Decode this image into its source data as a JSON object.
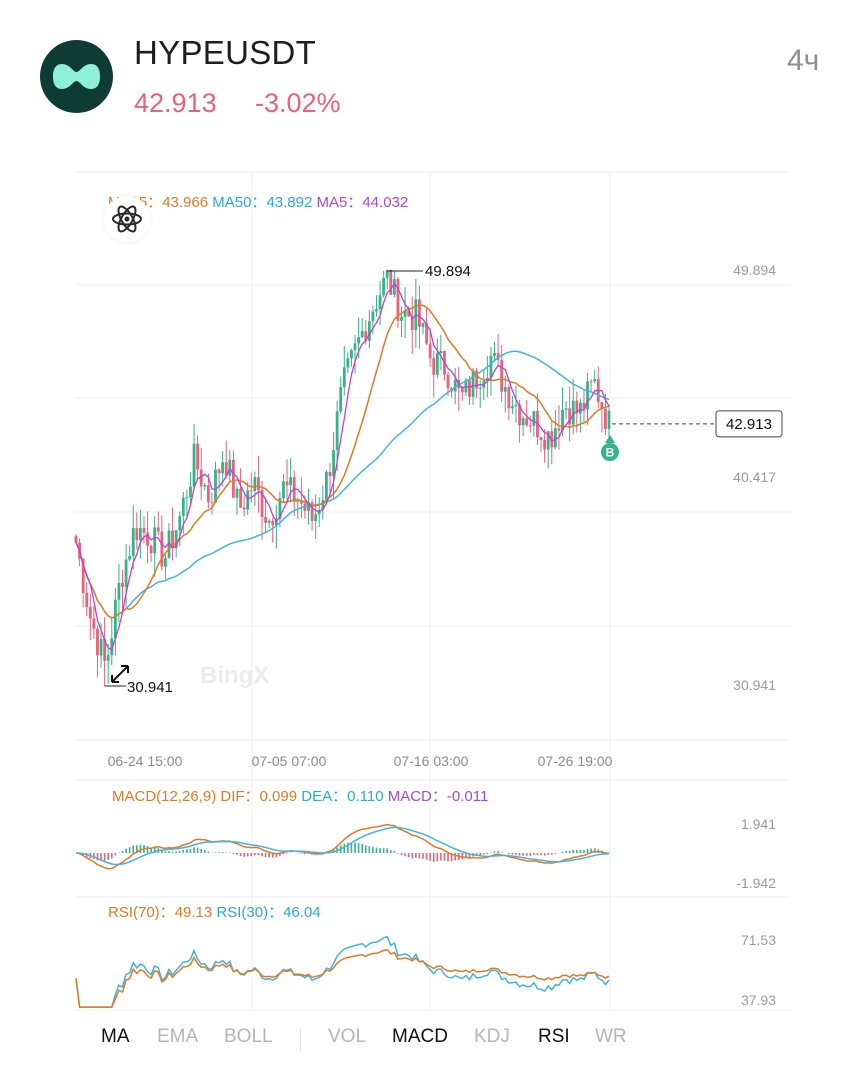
{
  "header": {
    "symbol": "HYPEUSDT",
    "price": "42.913",
    "change": "-3.02%",
    "interval": "4ч",
    "logo_icon": "hyperliquid-logo-icon",
    "colors": {
      "down": "#e8637a",
      "logo_bg": "#0e3b32",
      "logo_fg": "#8ef0d8"
    }
  },
  "main_chart": {
    "ma_legend": {
      "ma15_label": "MA15：",
      "ma15_value": "43.966",
      "ma50_label": "MA50：",
      "ma50_value": "43.892",
      "ma5_label": "MA5：",
      "ma5_value": "44.032"
    },
    "y_axis_labels": [
      "49.894",
      "40.417",
      "30.941"
    ],
    "high_label": "49.894",
    "low_label": "30.941",
    "last_price_tag": "42.913",
    "buy_marker": "B",
    "watermark": "BingX",
    "x_axis_labels": [
      "06-24 15:00",
      "07-05 07:00",
      "07-16 03:00",
      "07-26 19:00"
    ],
    "colors": {
      "up": "#35b389",
      "down": "#e8637a",
      "ma5": "#c43fd0",
      "ma15": "#e07a26",
      "ma50": "#41b4e6"
    }
  },
  "macd": {
    "label": "MACD(12,26,9)",
    "dif_label": "DIF：",
    "dif_value": "0.099",
    "dea_label": "DEA：",
    "dea_value": "0.110",
    "macd_label": "MACD：",
    "macd_value": "-0.011",
    "y_axis_labels": [
      "1.941",
      "-1.942"
    ]
  },
  "rsi": {
    "rsi70_label": "RSI(70)：",
    "rsi70_value": "49.13",
    "rsi30_label": "RSI(30)：",
    "rsi30_value": "46.04",
    "y_axis_labels": [
      "71.53",
      "37.93"
    ]
  },
  "indicator_tabs": [
    {
      "label": "MA",
      "active": true
    },
    {
      "label": "EMA",
      "active": false
    },
    {
      "label": "BOLL",
      "active": false
    },
    {
      "label": "VOL",
      "active": false
    },
    {
      "label": "MACD",
      "active": true
    },
    {
      "label": "KDJ",
      "active": false
    },
    {
      "label": "RSI",
      "active": true
    },
    {
      "label": "WR",
      "active": false
    }
  ],
  "chart_data": {
    "type": "line",
    "title": "HYPEUSDT 4ч",
    "x_ticks": [
      "06-24 15:00",
      "07-05 07:00",
      "07-16 03:00",
      "07-26 19:00"
    ],
    "price": {
      "high": 49.894,
      "low": 30.941,
      "last": 42.913,
      "ylim": [
        30.941,
        49.894
      ],
      "y_ticks": [
        49.894,
        40.417,
        30.941
      ],
      "approx_close_path": [
        37.5,
        34.0,
        31.8,
        35.8,
        38.2,
        37.8,
        36.8,
        38.6,
        41.3,
        39.5,
        41.6,
        39.0,
        40.2,
        38.5,
        40.0,
        39.5,
        38.5,
        40.5,
        44.5,
        46.5,
        48.2,
        49.6,
        48.0,
        47.8,
        45.8,
        45.5,
        44.0,
        45.0,
        46.0,
        44.6,
        43.5,
        43.0,
        42.3,
        43.8,
        43.4,
        44.8,
        42.9
      ],
      "series": [
        {
          "name": "MA5",
          "last_value": 44.032
        },
        {
          "name": "MA15",
          "last_value": 43.966
        },
        {
          "name": "MA50",
          "last_value": 43.892
        }
      ]
    },
    "macd": {
      "ylim": [
        -1.942,
        1.941
      ],
      "y_ticks": [
        1.941,
        -1.942
      ],
      "dif": 0.099,
      "dea": 0.11,
      "macd": -0.011
    },
    "rsi": {
      "ylim": [
        37.93,
        71.53
      ],
      "y_ticks": [
        71.53,
        37.93
      ],
      "rsi70": 49.13,
      "rsi30": 46.04
    }
  }
}
